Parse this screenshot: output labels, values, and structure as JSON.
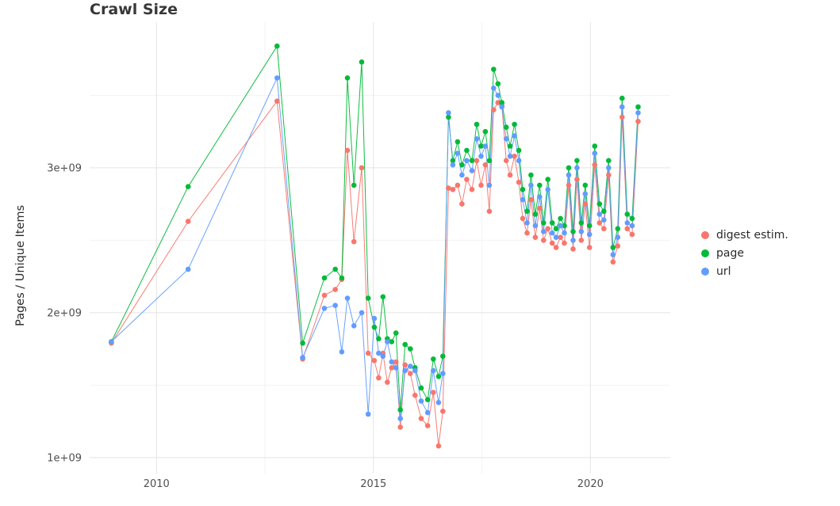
{
  "title": "Crawl Size",
  "y_axis_label": "Pages / Unique Items",
  "legend": {
    "items": [
      {
        "id": "digest",
        "label": "digest estim.",
        "color": "#F8766D"
      },
      {
        "id": "page",
        "label": "page",
        "color": "#00BA38"
      },
      {
        "id": "url",
        "label": "url",
        "color": "#619CFF"
      }
    ]
  },
  "chart_data": {
    "type": "line",
    "title": "Crawl Size",
    "xlabel": "",
    "ylabel": "Pages / Unique Items",
    "y_unit": "values in units of 1e+09 (billions), as read from axis",
    "grid": true,
    "legend_position": "right",
    "x_ticks": [
      2010,
      2015,
      2020
    ],
    "x_tick_labels": [
      "2010",
      "2015",
      "2020"
    ],
    "x_minor_ticks": [
      2012.5,
      2017.5
    ],
    "y_ticks": [
      1,
      2,
      3
    ],
    "y_tick_labels": [
      "1e+09",
      "2e+09",
      "3e+09"
    ],
    "y_minor_ticks": [
      1.5,
      2.5,
      3.5
    ],
    "xlim": [
      2008.46,
      2021.84
    ],
    "ylim": [
      0.89,
      4.005
    ],
    "x": [
      2008.96,
      2010.73,
      2012.78,
      2013.37,
      2013.87,
      2014.12,
      2014.27,
      2014.4,
      2014.55,
      2014.73,
      2014.88,
      2015.02,
      2015.12,
      2015.22,
      2015.32,
      2015.42,
      2015.52,
      2015.62,
      2015.73,
      2015.85,
      2015.96,
      2016.1,
      2016.25,
      2016.38,
      2016.5,
      2016.6,
      2016.73,
      2016.83,
      2016.94,
      2017.04,
      2017.15,
      2017.27,
      2017.38,
      2017.48,
      2017.58,
      2017.67,
      2017.77,
      2017.87,
      2017.96,
      2018.06,
      2018.15,
      2018.25,
      2018.35,
      2018.44,
      2018.54,
      2018.63,
      2018.73,
      2018.83,
      2018.92,
      2019.02,
      2019.12,
      2019.21,
      2019.31,
      2019.4,
      2019.5,
      2019.6,
      2019.69,
      2019.79,
      2019.88,
      2019.98,
      2020.1,
      2020.21,
      2020.31,
      2020.42,
      2020.52,
      2020.63,
      2020.73,
      2020.85,
      2020.96,
      2021.1
    ],
    "series": [
      {
        "id": "digest",
        "name": "digest estim.",
        "color": "#F8766D",
        "values": [
          1.79,
          2.63,
          3.46,
          1.68,
          2.12,
          2.16,
          2.23,
          3.12,
          2.49,
          3.0,
          1.72,
          1.67,
          1.55,
          1.72,
          1.52,
          1.62,
          1.66,
          1.21,
          1.64,
          1.58,
          1.43,
          1.27,
          1.22,
          1.45,
          1.08,
          1.32,
          2.86,
          2.85,
          2.88,
          2.75,
          2.92,
          2.85,
          3.05,
          2.88,
          3.02,
          2.7,
          3.4,
          3.45,
          3.43,
          3.05,
          2.95,
          3.08,
          2.9,
          2.65,
          2.55,
          2.78,
          2.52,
          2.72,
          2.5,
          2.58,
          2.48,
          2.45,
          2.52,
          2.48,
          2.88,
          2.44,
          2.92,
          2.5,
          2.75,
          2.45,
          3.02,
          2.62,
          2.58,
          2.95,
          2.35,
          2.46,
          3.35,
          2.58,
          2.54,
          3.32
        ]
      },
      {
        "id": "page",
        "name": "page",
        "color": "#00BA38",
        "values": [
          1.8,
          2.87,
          3.84,
          1.79,
          2.24,
          2.3,
          2.24,
          3.62,
          2.88,
          3.73,
          2.1,
          1.9,
          1.82,
          2.11,
          1.82,
          1.8,
          1.86,
          1.33,
          1.78,
          1.75,
          1.62,
          1.48,
          1.4,
          1.68,
          1.56,
          1.7,
          3.35,
          3.05,
          3.18,
          3.02,
          3.12,
          3.05,
          3.3,
          3.15,
          3.25,
          3.05,
          3.68,
          3.58,
          3.45,
          3.28,
          3.15,
          3.3,
          3.12,
          2.85,
          2.7,
          2.95,
          2.68,
          2.88,
          2.62,
          2.92,
          2.62,
          2.58,
          2.65,
          2.6,
          3.0,
          2.56,
          3.05,
          2.62,
          2.88,
          2.6,
          3.15,
          2.75,
          2.7,
          3.05,
          2.45,
          2.58,
          3.48,
          2.68,
          2.65,
          3.42
        ]
      },
      {
        "id": "url",
        "name": "url",
        "color": "#619CFF",
        "values": [
          1.8,
          2.3,
          3.62,
          1.69,
          2.03,
          2.05,
          1.73,
          2.1,
          1.91,
          2.0,
          1.3,
          1.96,
          1.72,
          1.7,
          1.8,
          1.66,
          1.62,
          1.27,
          1.6,
          1.63,
          1.6,
          1.39,
          1.31,
          1.6,
          1.38,
          1.58,
          3.38,
          3.02,
          3.1,
          2.95,
          3.05,
          2.98,
          3.2,
          3.08,
          3.15,
          2.88,
          3.55,
          3.5,
          3.42,
          3.2,
          3.08,
          3.22,
          3.05,
          2.78,
          2.62,
          2.88,
          2.6,
          2.8,
          2.56,
          2.85,
          2.55,
          2.52,
          2.6,
          2.55,
          2.95,
          2.5,
          3.0,
          2.56,
          2.82,
          2.54,
          3.1,
          2.68,
          2.64,
          3.0,
          2.4,
          2.52,
          3.42,
          2.62,
          2.6,
          3.38
        ]
      }
    ]
  }
}
